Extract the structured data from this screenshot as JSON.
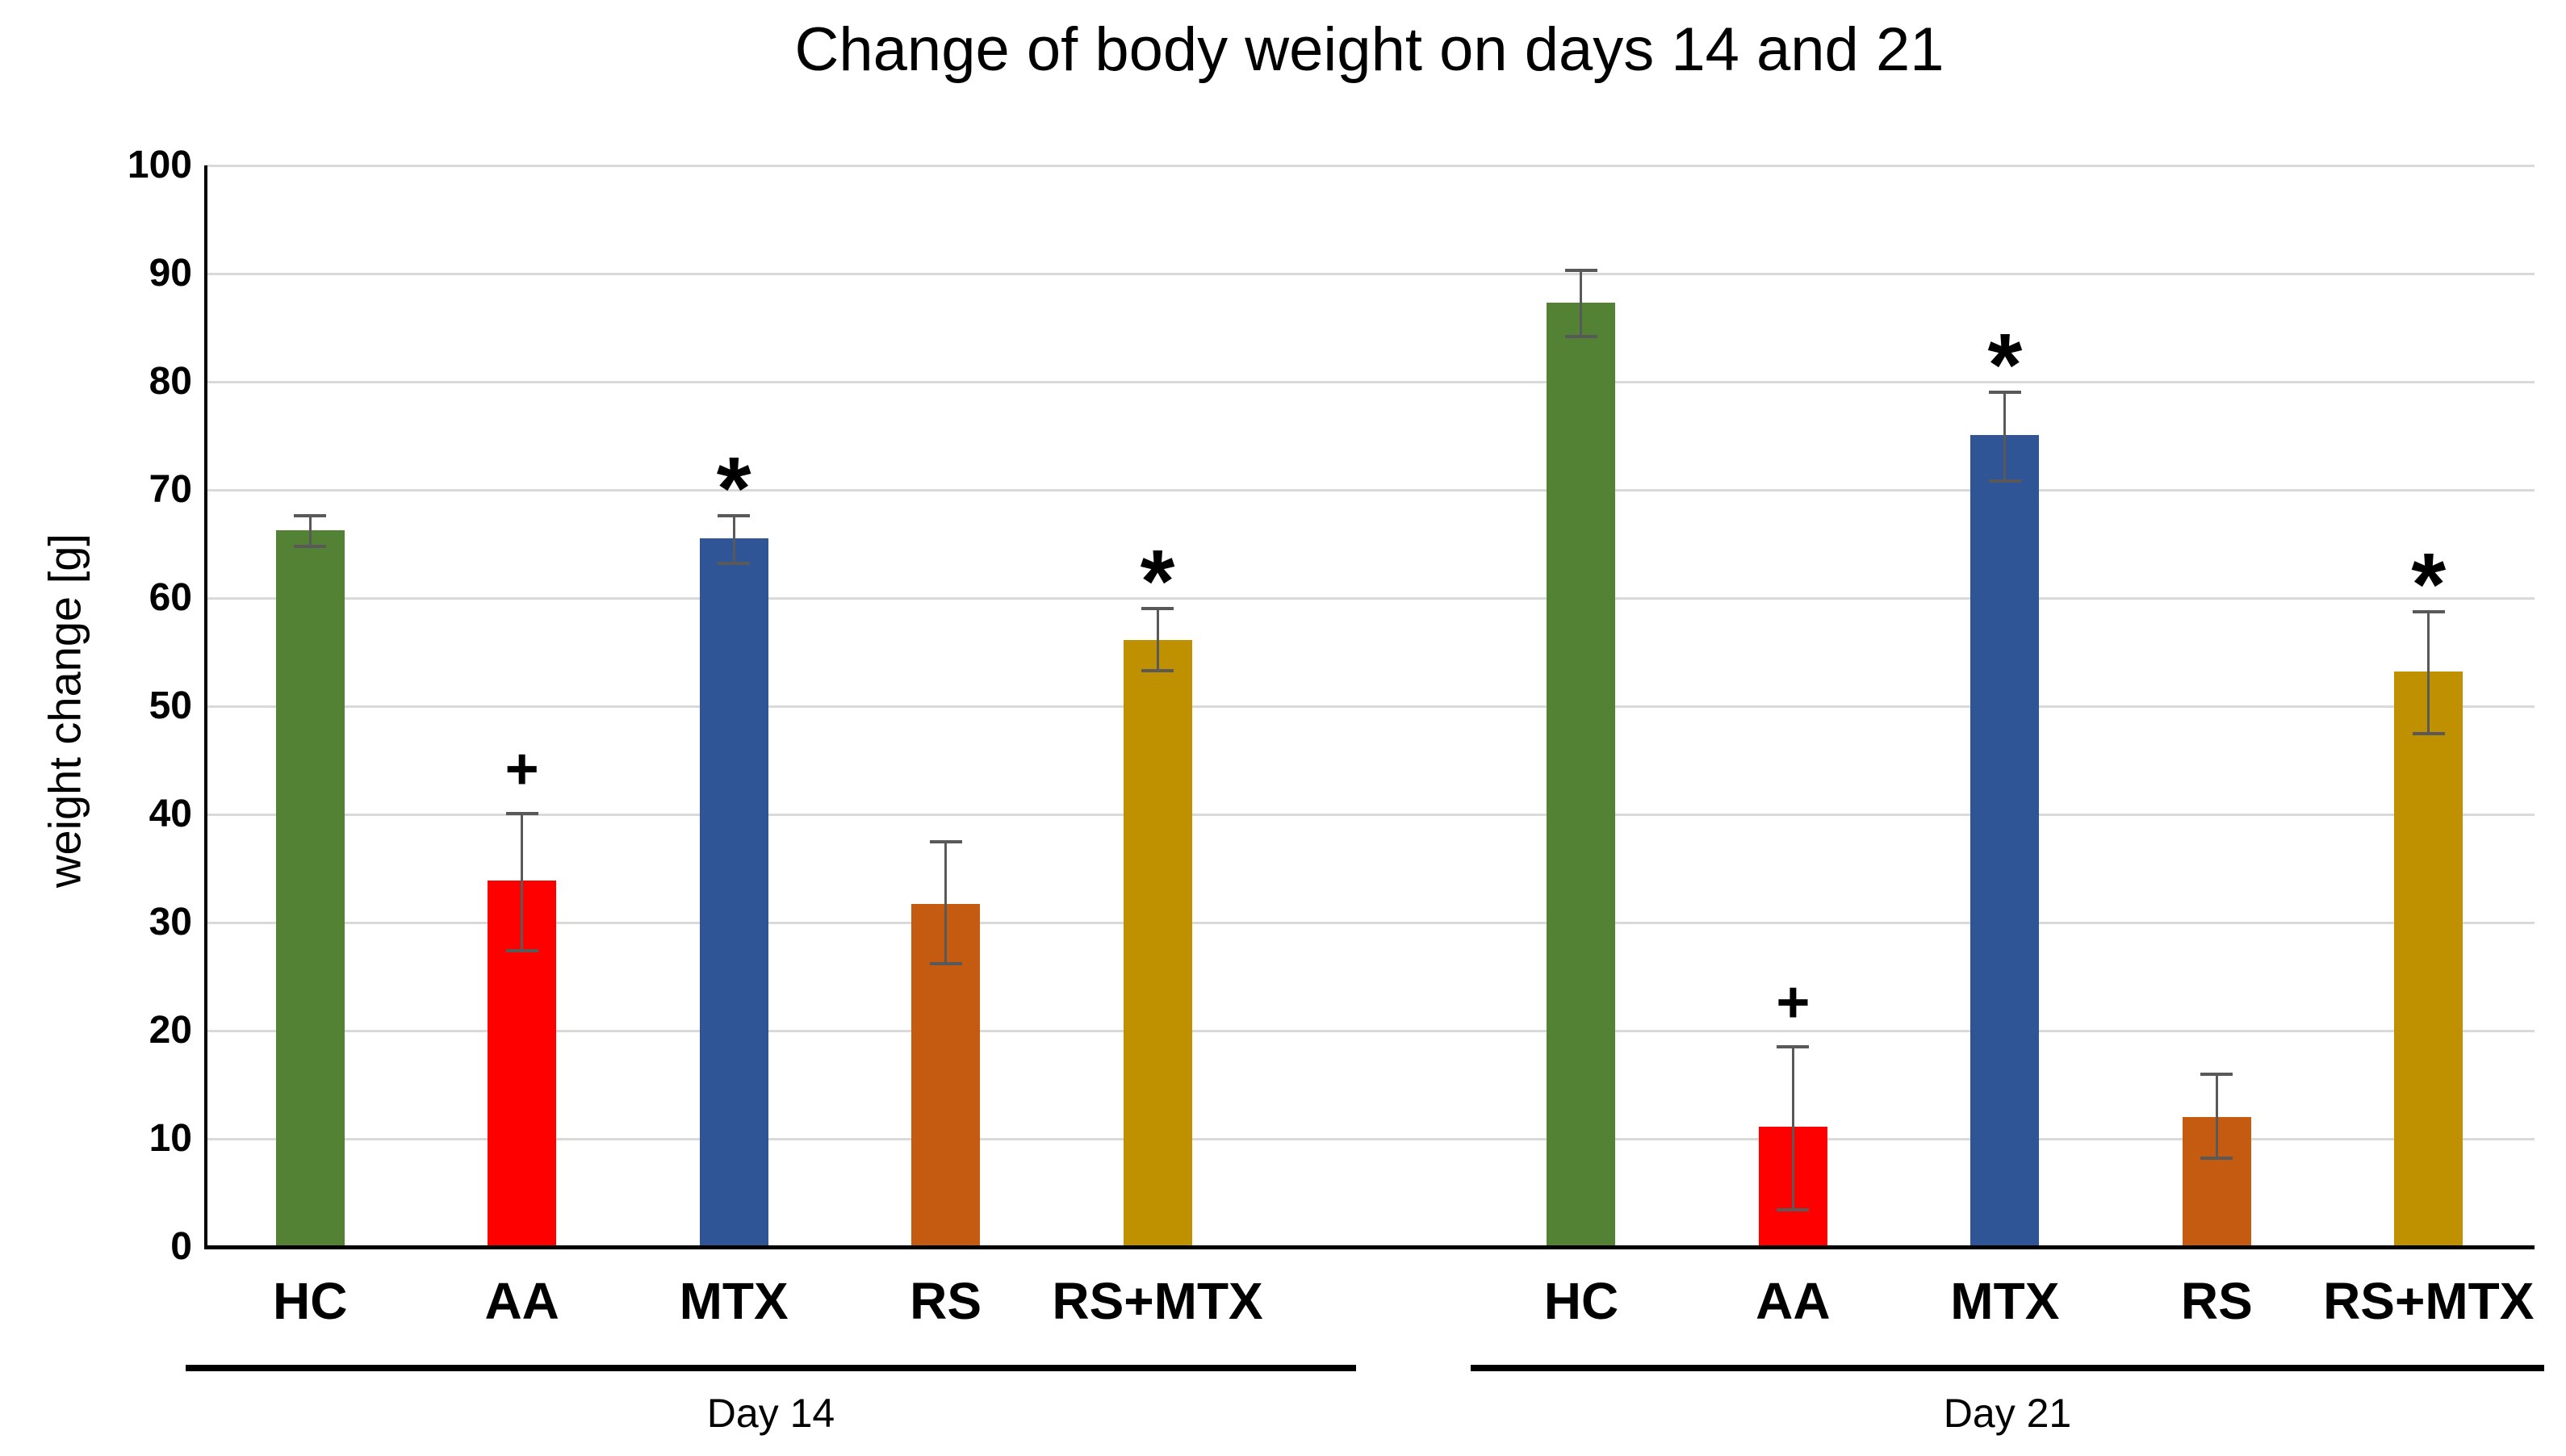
{
  "chart_data": {
    "type": "bar",
    "title": "Change of body weight on days 14 and 21",
    "xlabel": "",
    "ylabel": "weight change [g]",
    "ylim": [
      0,
      100
    ],
    "yticks": [
      0,
      10,
      20,
      30,
      40,
      50,
      60,
      70,
      80,
      90,
      100
    ],
    "grid": true,
    "legend": "none",
    "error_bar_color": "#595959",
    "gridline_color": "#d9d9d9",
    "significance_markers": {
      "plus": "+",
      "star": "*"
    },
    "groups": [
      {
        "label": "Day 14",
        "bars": [
          {
            "category": "HC",
            "value": 66.3,
            "err_plus": 1.3,
            "err_minus": 1.5,
            "color": "#548235",
            "marker": ""
          },
          {
            "category": "AA",
            "value": 33.9,
            "err_plus": 6.2,
            "err_minus": 6.5,
            "color": "#ff0000",
            "marker": "+"
          },
          {
            "category": "MTX",
            "value": 65.5,
            "err_plus": 2.1,
            "err_minus": 2.3,
            "color": "#2f5597",
            "marker": "*"
          },
          {
            "category": "RS",
            "value": 31.7,
            "err_plus": 5.8,
            "err_minus": 5.5,
            "color": "#c55a11",
            "marker": ""
          },
          {
            "category": "RS+MTX",
            "value": 56.1,
            "err_plus": 2.9,
            "err_minus": 2.8,
            "color": "#bf9000",
            "marker": "*"
          }
        ]
      },
      {
        "label": "Day 21",
        "bars": [
          {
            "category": "HC",
            "value": 87.3,
            "err_plus": 3.0,
            "err_minus": 3.1,
            "color": "#548235",
            "marker": ""
          },
          {
            "category": "AA",
            "value": 11.1,
            "err_plus": 7.4,
            "err_minus": 7.7,
            "color": "#ff0000",
            "marker": "+"
          },
          {
            "category": "MTX",
            "value": 75.1,
            "err_plus": 3.9,
            "err_minus": 4.3,
            "color": "#2f5597",
            "marker": "*"
          },
          {
            "category": "RS",
            "value": 12.0,
            "err_plus": 4.0,
            "err_minus": 3.8,
            "color": "#c55a11",
            "marker": ""
          },
          {
            "category": "RS+MTX",
            "value": 53.2,
            "err_plus": 5.5,
            "err_minus": 5.7,
            "color": "#bf9000",
            "marker": "*"
          }
        ]
      }
    ]
  }
}
